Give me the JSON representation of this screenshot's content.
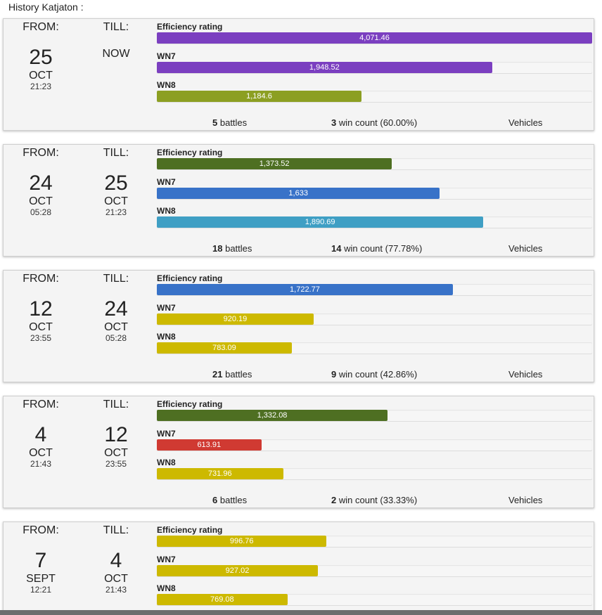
{
  "title": "History Katjaton :",
  "labels": {
    "from": "FROM:",
    "till": "TILL:",
    "battles": "battles",
    "wins": "win count",
    "vehicles": "Vehicles"
  },
  "colors": {
    "purple": "#7b3fc0",
    "olive": "#8c9f22",
    "darkgreen": "#4e6f22",
    "blue": "#3872c8",
    "teal": "#3f9fc4",
    "yellow": "#cdb900",
    "red": "#d03a32"
  },
  "entries": [
    {
      "from": {
        "day": "25",
        "month": "OCT",
        "time": "21:23"
      },
      "till": {
        "now": "NOW"
      },
      "metrics": [
        {
          "label": "Efficiency rating",
          "value": "4,071.46",
          "fraction": 1.0,
          "color": "purple"
        },
        {
          "label": "WN7",
          "value": "1,948.52",
          "fraction": 0.77,
          "color": "purple"
        },
        {
          "label": "WN8",
          "value": "1,184.6",
          "fraction": 0.47,
          "color": "olive"
        }
      ],
      "battles": "5",
      "wins": "3",
      "win_pct": "(60.00%)"
    },
    {
      "from": {
        "day": "24",
        "month": "OCT",
        "time": "05:28"
      },
      "till": {
        "day": "25",
        "month": "OCT",
        "time": "21:23"
      },
      "metrics": [
        {
          "label": "Efficiency rating",
          "value": "1,373.52",
          "fraction": 0.54,
          "color": "darkgreen"
        },
        {
          "label": "WN7",
          "value": "1,633",
          "fraction": 0.65,
          "color": "blue"
        },
        {
          "label": "WN8",
          "value": "1,890.69",
          "fraction": 0.75,
          "color": "teal"
        }
      ],
      "battles": "18",
      "wins": "14",
      "win_pct": "(77.78%)"
    },
    {
      "from": {
        "day": "12",
        "month": "OCT",
        "time": "23:55"
      },
      "till": {
        "day": "24",
        "month": "OCT",
        "time": "05:28"
      },
      "metrics": [
        {
          "label": "Efficiency rating",
          "value": "1,722.77",
          "fraction": 0.68,
          "color": "blue"
        },
        {
          "label": "WN7",
          "value": "920.19",
          "fraction": 0.36,
          "color": "yellow"
        },
        {
          "label": "WN8",
          "value": "783.09",
          "fraction": 0.31,
          "color": "yellow"
        }
      ],
      "battles": "21",
      "wins": "9",
      "win_pct": "(42.86%)"
    },
    {
      "from": {
        "day": "4",
        "month": "OCT",
        "time": "21:43"
      },
      "till": {
        "day": "12",
        "month": "OCT",
        "time": "23:55"
      },
      "metrics": [
        {
          "label": "Efficiency rating",
          "value": "1,332.08",
          "fraction": 0.53,
          "color": "darkgreen"
        },
        {
          "label": "WN7",
          "value": "613.91",
          "fraction": 0.24,
          "color": "red"
        },
        {
          "label": "WN8",
          "value": "731.96",
          "fraction": 0.29,
          "color": "yellow"
        }
      ],
      "battles": "6",
      "wins": "2",
      "win_pct": "(33.33%)"
    },
    {
      "from": {
        "day": "7",
        "month": "SEPT",
        "time": "12:21"
      },
      "till": {
        "day": "4",
        "month": "OCT",
        "time": "21:43"
      },
      "metrics": [
        {
          "label": "Efficiency rating",
          "value": "996.76",
          "fraction": 0.39,
          "color": "yellow"
        },
        {
          "label": "WN7",
          "value": "927.02",
          "fraction": 0.37,
          "color": "yellow"
        },
        {
          "label": "WN8",
          "value": "769.08",
          "fraction": 0.3,
          "color": "yellow"
        }
      ],
      "battles": "",
      "wins": "",
      "win_pct": ""
    }
  ]
}
